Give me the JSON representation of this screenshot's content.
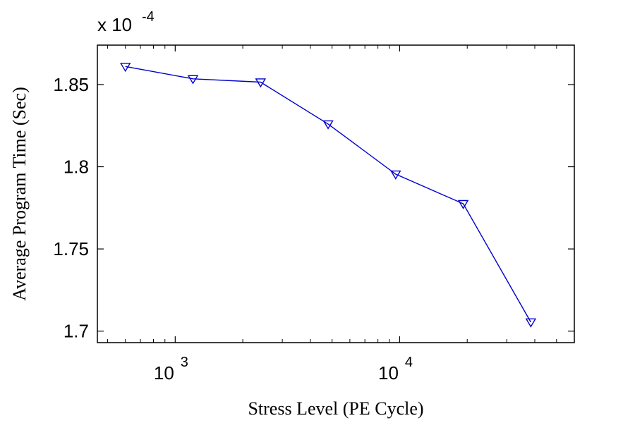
{
  "chart_data": {
    "type": "line",
    "xlabel": "Stress Level (PE Cycle)",
    "ylabel": "Average Program Time (Sec)",
    "x_scale": "log",
    "xlim": [
      450,
      60000
    ],
    "ylim": [
      1.693,
      1.874
    ],
    "y_multiplier": {
      "base": "x 10",
      "exponent": "-4"
    },
    "x_ticks": [
      {
        "value": 1000,
        "base": "10",
        "exp": "3"
      },
      {
        "value": 10000,
        "base": "10",
        "exp": "4"
      }
    ],
    "y_ticks": [
      {
        "value": 1.7,
        "label": "1.7"
      },
      {
        "value": 1.75,
        "label": "1.75"
      },
      {
        "value": 1.8,
        "label": "1.8"
      },
      {
        "value": 1.85,
        "label": "1.85"
      }
    ],
    "grid": false,
    "series": [
      {
        "color": "#0000cc",
        "marker": "triangle-down",
        "x": [
          600,
          1200,
          2400,
          4800,
          9600,
          19200,
          38400
        ],
        "y": [
          1.861,
          1.8535,
          1.8515,
          1.826,
          1.7955,
          1.7775,
          1.7055
        ]
      }
    ]
  }
}
